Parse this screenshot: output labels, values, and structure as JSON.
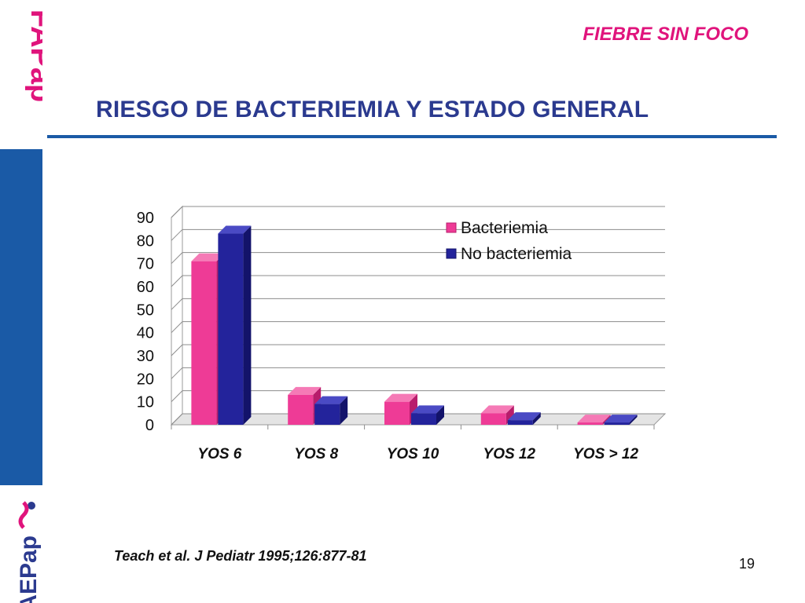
{
  "header": {
    "topic": "FIEBRE SIN FOCO",
    "title": "RIESGO DE BACTERIEMIA Y ESTADO GENERAL"
  },
  "logos": {
    "top": "FAPap",
    "bottom": "AEPap"
  },
  "footer": {
    "citation": "Teach et al. J Pediatr 1995;126:877-81",
    "page_number": "19"
  },
  "colors": {
    "title": "#2b3a8f",
    "topic": "#e0147c",
    "sidebar_blue": "#1a5aa6",
    "bacteriemia": "#ee3b96",
    "no_bacteriemia": "#23239b"
  },
  "chart_data": {
    "type": "bar",
    "categories": [
      "YOS 6",
      "YOS 8",
      "YOS 10",
      "YOS 12",
      "YOS > 12"
    ],
    "series": [
      {
        "name": "Bacteriemia",
        "values": [
          71,
          13,
          10,
          5,
          1
        ]
      },
      {
        "name": "No bacteriemia",
        "values": [
          83,
          9,
          5,
          2,
          1
        ]
      }
    ],
    "ylim": [
      0,
      90
    ],
    "yticks": [
      0,
      10,
      20,
      30,
      40,
      50,
      60,
      70,
      80,
      90
    ],
    "grid": true,
    "legend": "top-right",
    "style": "3d-column"
  }
}
